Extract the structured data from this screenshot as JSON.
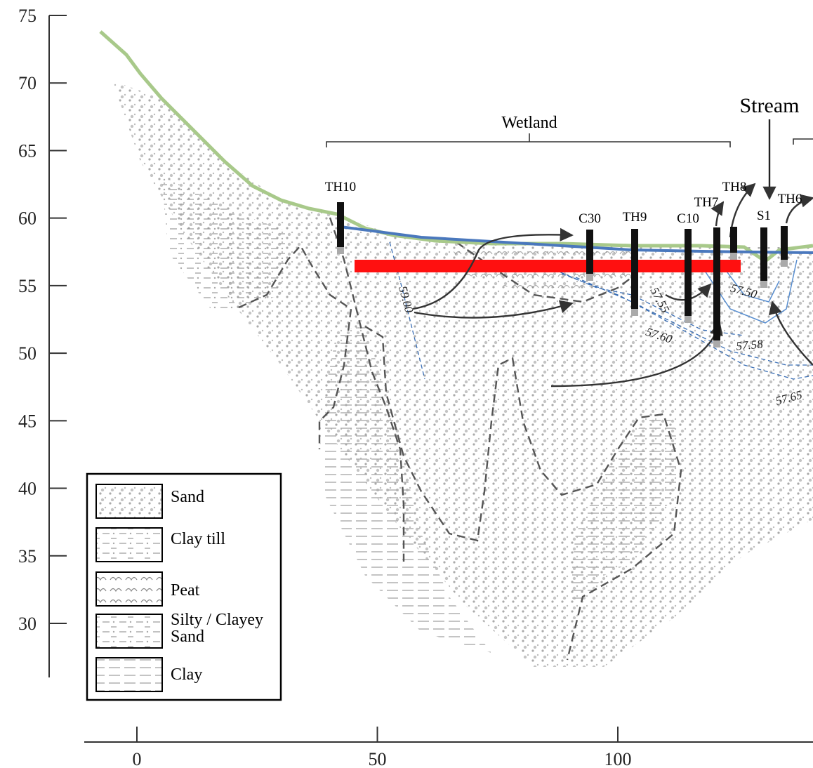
{
  "y_axis": {
    "ticks": [
      75,
      70,
      65,
      60,
      55,
      50,
      45,
      40,
      35,
      30
    ]
  },
  "x_axis": {
    "ticks": [
      0,
      50,
      100
    ]
  },
  "annotations": {
    "wetland": "Wetland",
    "stream": "Stream"
  },
  "wells": [
    {
      "label": "TH10"
    },
    {
      "label": "C30"
    },
    {
      "label": "TH9"
    },
    {
      "label": "C10"
    },
    {
      "label": "TH7"
    },
    {
      "label": "TH8"
    },
    {
      "label": "S1"
    },
    {
      "label": "TH6"
    }
  ],
  "contours": [
    "59.00",
    "57.55",
    "57.60",
    "57.50",
    "57.58",
    "57.65"
  ],
  "legend": [
    {
      "label": "Sand"
    },
    {
      "label": "Clay till"
    },
    {
      "label": "Peat"
    },
    {
      "label": [
        "Silty / Clayey",
        "Sand"
      ]
    },
    {
      "label": "Clay"
    }
  ]
}
